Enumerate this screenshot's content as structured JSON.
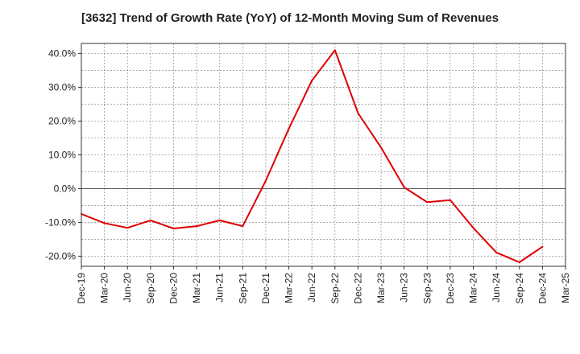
{
  "chart_data": {
    "type": "line",
    "title": "[3632]  Trend of Growth Rate (YoY) of 12-Month Moving Sum of Revenues",
    "xlabel": "",
    "ylabel": "",
    "x_tick_labels": [
      "Dec-19",
      "Mar-20",
      "Jun-20",
      "Sep-20",
      "Dec-20",
      "Mar-21",
      "Jun-21",
      "Sep-21",
      "Dec-21",
      "Mar-22",
      "Jun-22",
      "Sep-22",
      "Dec-22",
      "Mar-23",
      "Jun-23",
      "Sep-23",
      "Dec-23",
      "Mar-24",
      "Jun-24",
      "Sep-24",
      "Dec-24",
      "Mar-25"
    ],
    "y_tick_labels": [
      "40.0%",
      "30.0%",
      "20.0%",
      "10.0%",
      "0.0%",
      "-10.0%",
      "-20.0%"
    ],
    "y_ticks": [
      40,
      30,
      20,
      10,
      0,
      -10,
      -20
    ],
    "ylim": [
      -23,
      43
    ],
    "grid": true,
    "series": [
      {
        "name": "",
        "color": "#e00000",
        "x": [
          "Dec-19",
          "Mar-20",
          "Jun-20",
          "Sep-20",
          "Dec-20",
          "Mar-21",
          "Jun-21",
          "Sep-21",
          "Dec-21",
          "Mar-22",
          "Jun-22",
          "Sep-22",
          "Dec-22",
          "Mar-23",
          "Jun-23",
          "Sep-23",
          "Dec-23",
          "Mar-24",
          "Jun-24",
          "Sep-24",
          "Dec-24"
        ],
        "values": [
          -7.5,
          -10.2,
          -11.6,
          -9.4,
          -11.8,
          -11.1,
          -9.4,
          -11.1,
          2.4,
          17.8,
          32.0,
          41.0,
          22.4,
          12.2,
          0.4,
          -4.0,
          -3.4,
          -11.6,
          -18.9,
          -21.8,
          -17.2
        ]
      }
    ]
  }
}
